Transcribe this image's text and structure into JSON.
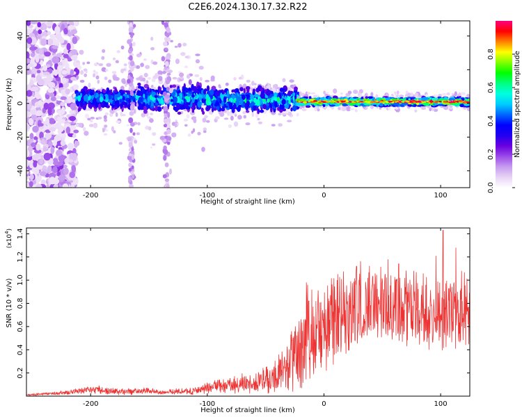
{
  "chart_data": [
    {
      "type": "heatmap",
      "title": "C2E6.2024.130.17.32.R22",
      "xlabel": "Height of straight line (km)",
      "ylabel": "Frequency (Hz)",
      "xlim": [
        -255,
        125
      ],
      "ylim": [
        -50,
        49
      ],
      "xticks": [
        -200,
        -100,
        0,
        100
      ],
      "yticks": [
        -40,
        -20,
        0,
        20,
        40
      ],
      "colorbar": {
        "label": "Normalized spectral amplitude",
        "range": [
          0,
          1
        ],
        "ticks": [
          "0.0",
          "0.2",
          "0.4",
          "0.6",
          "0.8"
        ],
        "tick_values": [
          0.0,
          0.2,
          0.4,
          0.6,
          0.8
        ],
        "colors": [
          "#ffffff",
          "#e8d4f6",
          "#c79cf0",
          "#9a4be8",
          "#6a00e0",
          "#2200f0",
          "#0000ff",
          "#0066ff",
          "#00ccff",
          "#00ffe0",
          "#00ff80",
          "#00ff00",
          "#80ff00",
          "#ffff00",
          "#ff8000",
          "#ff0000",
          "#ff0080"
        ]
      },
      "bands": [
        {
          "x_range": [
            -255,
            -212
          ],
          "center_freq": 0,
          "half_width": 50,
          "peak_amplitude": 0.18,
          "note": "scattered speckle"
        },
        {
          "x_range": [
            -212,
            -160
          ],
          "center_freq": 3,
          "half_width": 8,
          "peak_amplitude": 0.45
        },
        {
          "x_range": [
            -160,
            -100
          ],
          "center_freq": 3,
          "half_width": 10,
          "peak_amplitude": 0.5
        },
        {
          "x_range": [
            -100,
            -22
          ],
          "center_freq": 2,
          "half_width": 9,
          "peak_amplitude": 0.55
        },
        {
          "x_range": [
            -22,
            125
          ],
          "center_freq": 1,
          "half_width": 3,
          "peak_amplitude": 0.95
        }
      ]
    },
    {
      "type": "line",
      "xlabel": "Height of straight line (km)",
      "ylabel": "SNR (10 * v/v)",
      "multiplier": "(x10",
      "multiplier_exp": "4",
      "multiplier_close": ")",
      "xlim": [
        -255,
        125
      ],
      "ylim": [
        0,
        1.45
      ],
      "xticks": [
        -200,
        -100,
        0,
        100
      ],
      "yticks": [
        0.2,
        0.4,
        0.6,
        0.8,
        1.0,
        1.2,
        1.4
      ],
      "ytick_labels": [
        "0.2",
        "0.4",
        "0.6",
        "0.8",
        "1.0",
        "1.2",
        "1.4"
      ],
      "color": "#ee3333",
      "series": [
        {
          "name": "SNR",
          "envelope_x": [
            -255,
            -240,
            -220,
            -205,
            -195,
            -180,
            -165,
            -150,
            -140,
            -130,
            -115,
            -105,
            -100,
            -90,
            -80,
            -70,
            -60,
            -50,
            -40,
            -32,
            -28,
            -24,
            -20,
            -17,
            -15,
            -12,
            -8,
            -4,
            0,
            5,
            10,
            15,
            20,
            25,
            30,
            35,
            40,
            45,
            50,
            55,
            60,
            65,
            70,
            75,
            80,
            85,
            90,
            95,
            100,
            105,
            110,
            115,
            120,
            125
          ],
          "envelope_y": [
            0.01,
            0.02,
            0.03,
            0.05,
            0.06,
            0.04,
            0.04,
            0.05,
            0.03,
            0.04,
            0.04,
            0.06,
            0.07,
            0.1,
            0.1,
            0.11,
            0.12,
            0.14,
            0.18,
            0.24,
            0.28,
            0.35,
            0.4,
            0.45,
            0.5,
            0.52,
            0.55,
            0.58,
            0.6,
            0.62,
            0.64,
            0.68,
            0.72,
            0.74,
            0.78,
            0.78,
            0.8,
            0.8,
            0.82,
            0.8,
            0.8,
            0.78,
            0.76,
            0.76,
            0.74,
            0.74,
            0.72,
            0.72,
            0.72,
            0.74,
            0.74,
            0.75,
            0.74,
            0.74
          ],
          "noise_y": [
            0.01,
            0.01,
            0.02,
            0.03,
            0.04,
            0.03,
            0.03,
            0.03,
            0.02,
            0.03,
            0.03,
            0.04,
            0.05,
            0.07,
            0.08,
            0.09,
            0.1,
            0.12,
            0.16,
            0.22,
            0.28,
            0.3,
            0.34,
            0.38,
            0.4,
            0.42,
            0.4,
            0.4,
            0.4,
            0.4,
            0.4,
            0.4,
            0.4,
            0.4,
            0.4,
            0.38,
            0.38,
            0.36,
            0.36,
            0.36,
            0.34,
            0.34,
            0.34,
            0.34,
            0.34,
            0.34,
            0.34,
            0.34,
            0.34,
            0.34,
            0.34,
            0.34,
            0.34,
            0.34
          ],
          "notable_peaks": [
            {
              "x": -15,
              "y": 0.98
            },
            {
              "x": -13,
              "y": 0.82
            },
            {
              "x": -14,
              "y": 0.96
            },
            {
              "x": 28,
              "y": 1.12
            },
            {
              "x": 55,
              "y": 1.18
            },
            {
              "x": 64,
              "y": 1.14
            },
            {
              "x": 102,
              "y": 1.43
            },
            {
              "x": 113,
              "y": 1.28
            },
            {
              "x": 118,
              "y": 1.08
            },
            {
              "x": 96,
              "y": 1.21
            },
            {
              "x": 77,
              "y": 1.08
            }
          ]
        }
      ]
    }
  ]
}
